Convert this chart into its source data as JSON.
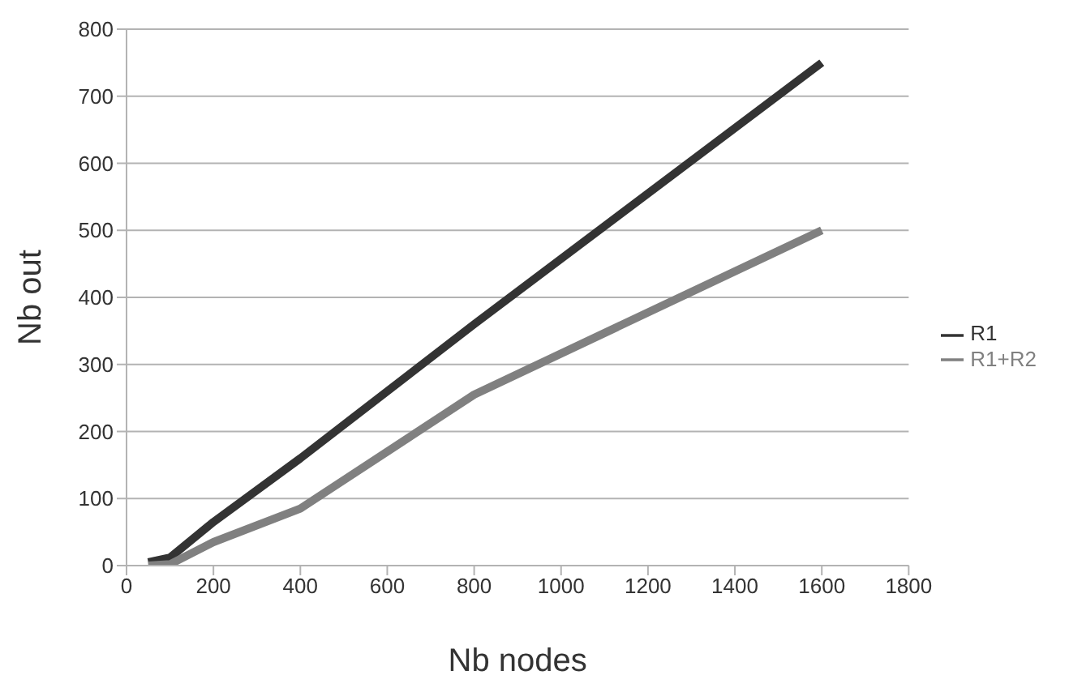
{
  "chart_data": {
    "type": "line",
    "xlabel": "Nb nodes",
    "ylabel": "Nb out",
    "x": [
      50,
      100,
      200,
      400,
      800,
      1600
    ],
    "series": [
      {
        "name": "R1",
        "color": "#333333",
        "values": [
          5,
          12,
          65,
          160,
          360,
          750
        ]
      },
      {
        "name": "R1+R2",
        "color": "#808080",
        "values": [
          0,
          2,
          35,
          85,
          255,
          500
        ]
      }
    ],
    "xlim": [
      0,
      1800
    ],
    "xticks": [
      0,
      200,
      400,
      600,
      800,
      1000,
      1200,
      1400,
      1600,
      1800
    ],
    "ylim": [
      0,
      800
    ],
    "yticks": [
      0,
      100,
      200,
      300,
      400,
      500,
      600,
      700,
      800
    ],
    "grid": "y",
    "legend": "right",
    "marker": "none",
    "line_style": "solid"
  }
}
